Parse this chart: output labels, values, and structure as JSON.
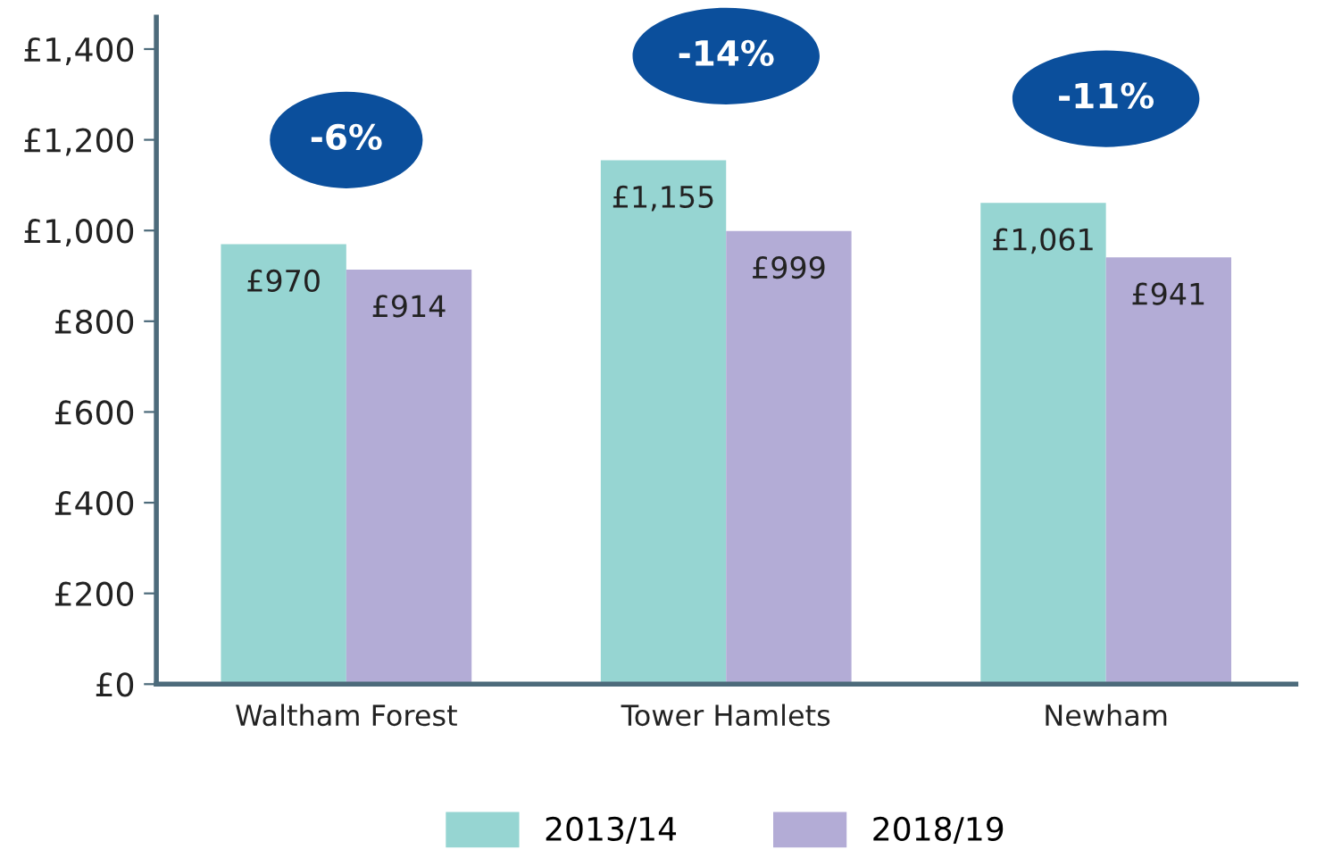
{
  "chart_data": {
    "type": "bar",
    "categories": [
      "Waltham Forest",
      "Tower Hamlets",
      "Newham"
    ],
    "series": [
      {
        "name": "2013/14",
        "color": "#96d5d2",
        "values": [
          970,
          1155,
          1061
        ],
        "value_labels": [
          "£970",
          "£1,155",
          "£1,061"
        ]
      },
      {
        "name": "2018/19",
        "color": "#b3acd6",
        "values": [
          914,
          999,
          941
        ],
        "value_labels": [
          "£914",
          "£999",
          "£941"
        ]
      }
    ],
    "ylim": [
      0,
      1470
    ],
    "yticks": [
      {
        "value": 0,
        "label": "£0"
      },
      {
        "value": 200,
        "label": "£200"
      },
      {
        "value": 400,
        "label": "£400"
      },
      {
        "value": 600,
        "label": "£600"
      },
      {
        "value": 800,
        "label": "£800"
      },
      {
        "value": 1000,
        "label": "£1,000"
      },
      {
        "value": 1200,
        "label": "£1,200"
      },
      {
        "value": 1400,
        "label": "£1,400"
      }
    ],
    "annotations": [
      "-6%",
      "-14%",
      "-11%"
    ],
    "grid": false,
    "legend": "bottom"
  }
}
